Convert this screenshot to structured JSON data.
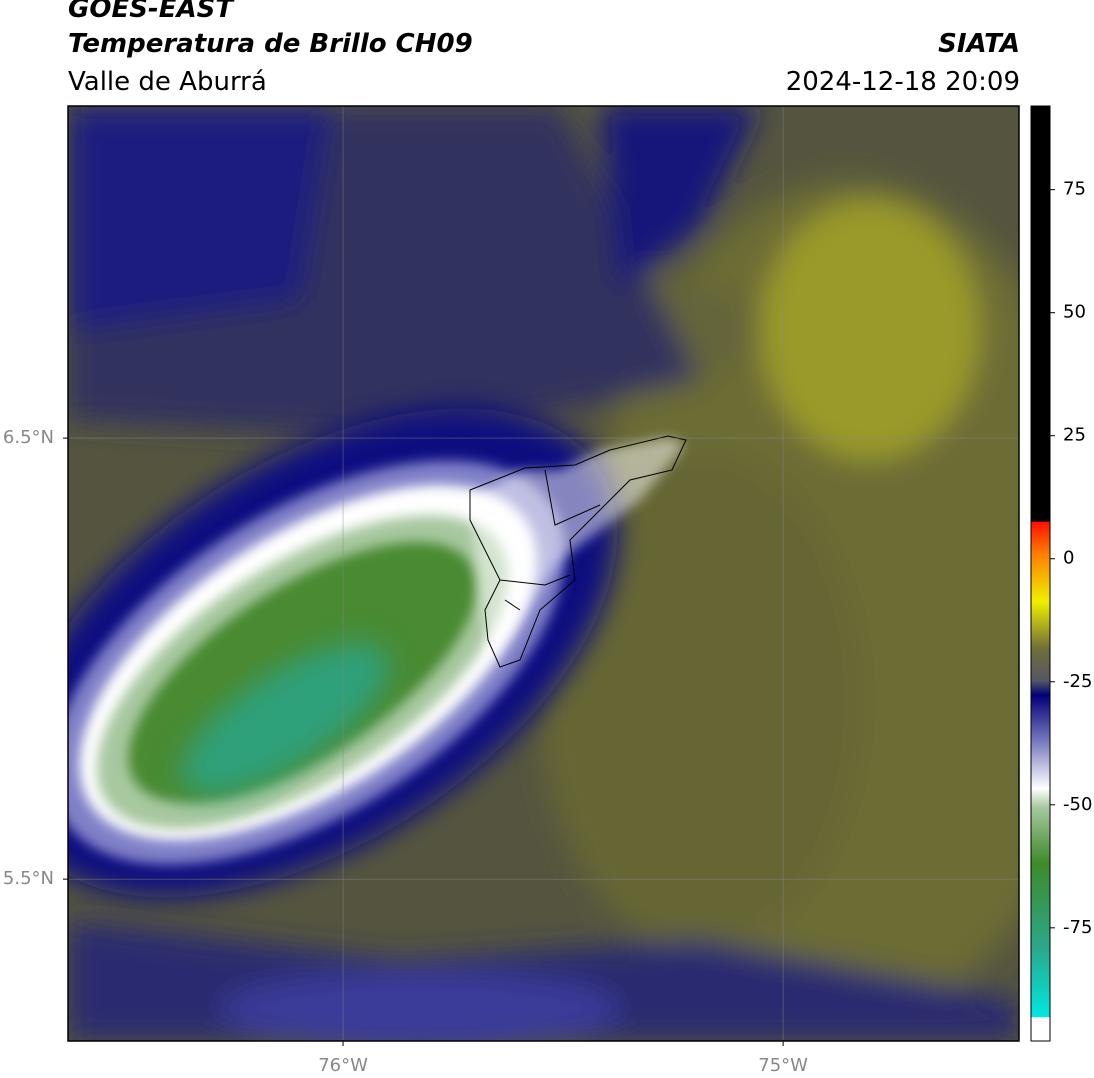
{
  "header": {
    "title": "GOES-EAST",
    "subtitle": "Temperatura de Brillo CH09",
    "location": "Valle de Aburrá",
    "source": "SIATA",
    "datetime": "2024-12-18 20:09"
  },
  "map": {
    "lon_lim": [
      -76.625,
      -74.464
    ],
    "lat_lim": [
      5.133,
      7.253
    ],
    "lon_ticks": [
      {
        "value": -76,
        "label": "76°W"
      },
      {
        "value": -75,
        "label": "75°W"
      }
    ],
    "lat_ticks": [
      {
        "value": 6.5,
        "label": "6.5°N"
      },
      {
        "value": 5.5,
        "label": "5.5°N"
      }
    ]
  },
  "colorbar": {
    "lim": [
      -98,
      92
    ],
    "ticks": [
      75,
      50,
      25,
      0,
      -25,
      -50,
      -75
    ]
  }
}
